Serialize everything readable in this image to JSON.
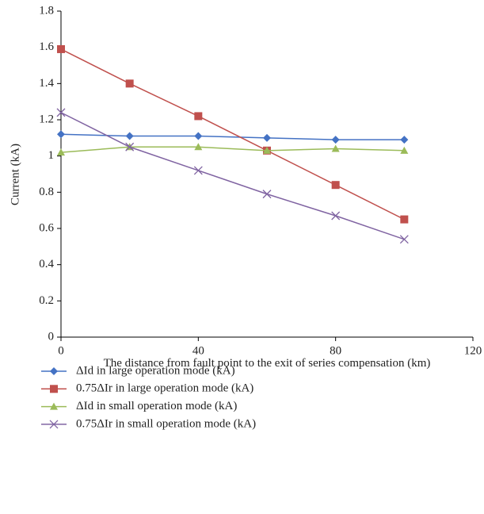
{
  "chart_data": {
    "type": "line",
    "ylabel": "Current (kA)",
    "xlabel": "The distance from fault point to the exit of series compensation (km)",
    "x": [
      0,
      20,
      40,
      60,
      80,
      100
    ],
    "xlim": [
      0,
      120
    ],
    "xticks": [
      0,
      40,
      80,
      120
    ],
    "ylim": [
      0,
      1.8
    ],
    "yticks": [
      0,
      0.2,
      0.4,
      0.6,
      0.8,
      1,
      1.2,
      1.4,
      1.6,
      1.8
    ],
    "grid": false,
    "series": [
      {
        "name": "ΔId in large operation mode (kA)",
        "color": "#4472c4",
        "marker": "diamond",
        "values": [
          1.12,
          1.11,
          1.11,
          1.1,
          1.09,
          1.09
        ]
      },
      {
        "name": "0.75ΔIr  in large operation mode (kA)",
        "color": "#c0504d",
        "marker": "square",
        "values": [
          1.59,
          1.4,
          1.22,
          1.03,
          0.84,
          0.65
        ]
      },
      {
        "name": "ΔId in small operation mode (kA)",
        "color": "#9bbb59",
        "marker": "triangle",
        "values": [
          1.02,
          1.05,
          1.05,
          1.03,
          1.04,
          1.03
        ]
      },
      {
        "name": "0.75ΔIr  in small operation mode (kA)",
        "color": "#8064a2",
        "marker": "x",
        "values": [
          1.24,
          1.05,
          0.92,
          0.79,
          0.67,
          0.54
        ]
      }
    ]
  }
}
